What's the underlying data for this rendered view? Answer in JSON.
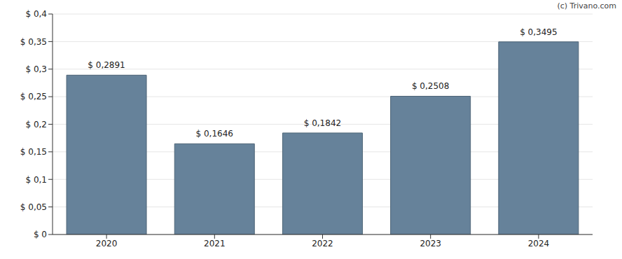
{
  "chart_data": {
    "type": "bar",
    "annotation": "(c) Trivano.com",
    "categories": [
      "2020",
      "2021",
      "2022",
      "2023",
      "2024"
    ],
    "values": [
      0.2891,
      0.1646,
      0.1842,
      0.2508,
      0.3495
    ],
    "value_labels": [
      "$ 0,2891",
      "$ 0,1646",
      "$ 0,1842",
      "$ 0,2508",
      "$ 0,3495"
    ],
    "color": "#66829a",
    "ylim": [
      0,
      0.4
    ],
    "yticks": [
      {
        "value": 0,
        "label": "$ 0"
      },
      {
        "value": 0.05,
        "label": "$ 0,05"
      },
      {
        "value": 0.1,
        "label": "$ 0,1"
      },
      {
        "value": 0.15,
        "label": "$ 0,15"
      },
      {
        "value": 0.2,
        "label": "$ 0,2"
      },
      {
        "value": 0.25,
        "label": "$ 0,25"
      },
      {
        "value": 0.3,
        "label": "$ 0,3"
      },
      {
        "value": 0.35,
        "label": "$ 0,35"
      },
      {
        "value": 0.4,
        "label": "$ 0,4"
      }
    ],
    "grid": true,
    "data_labels": true
  }
}
